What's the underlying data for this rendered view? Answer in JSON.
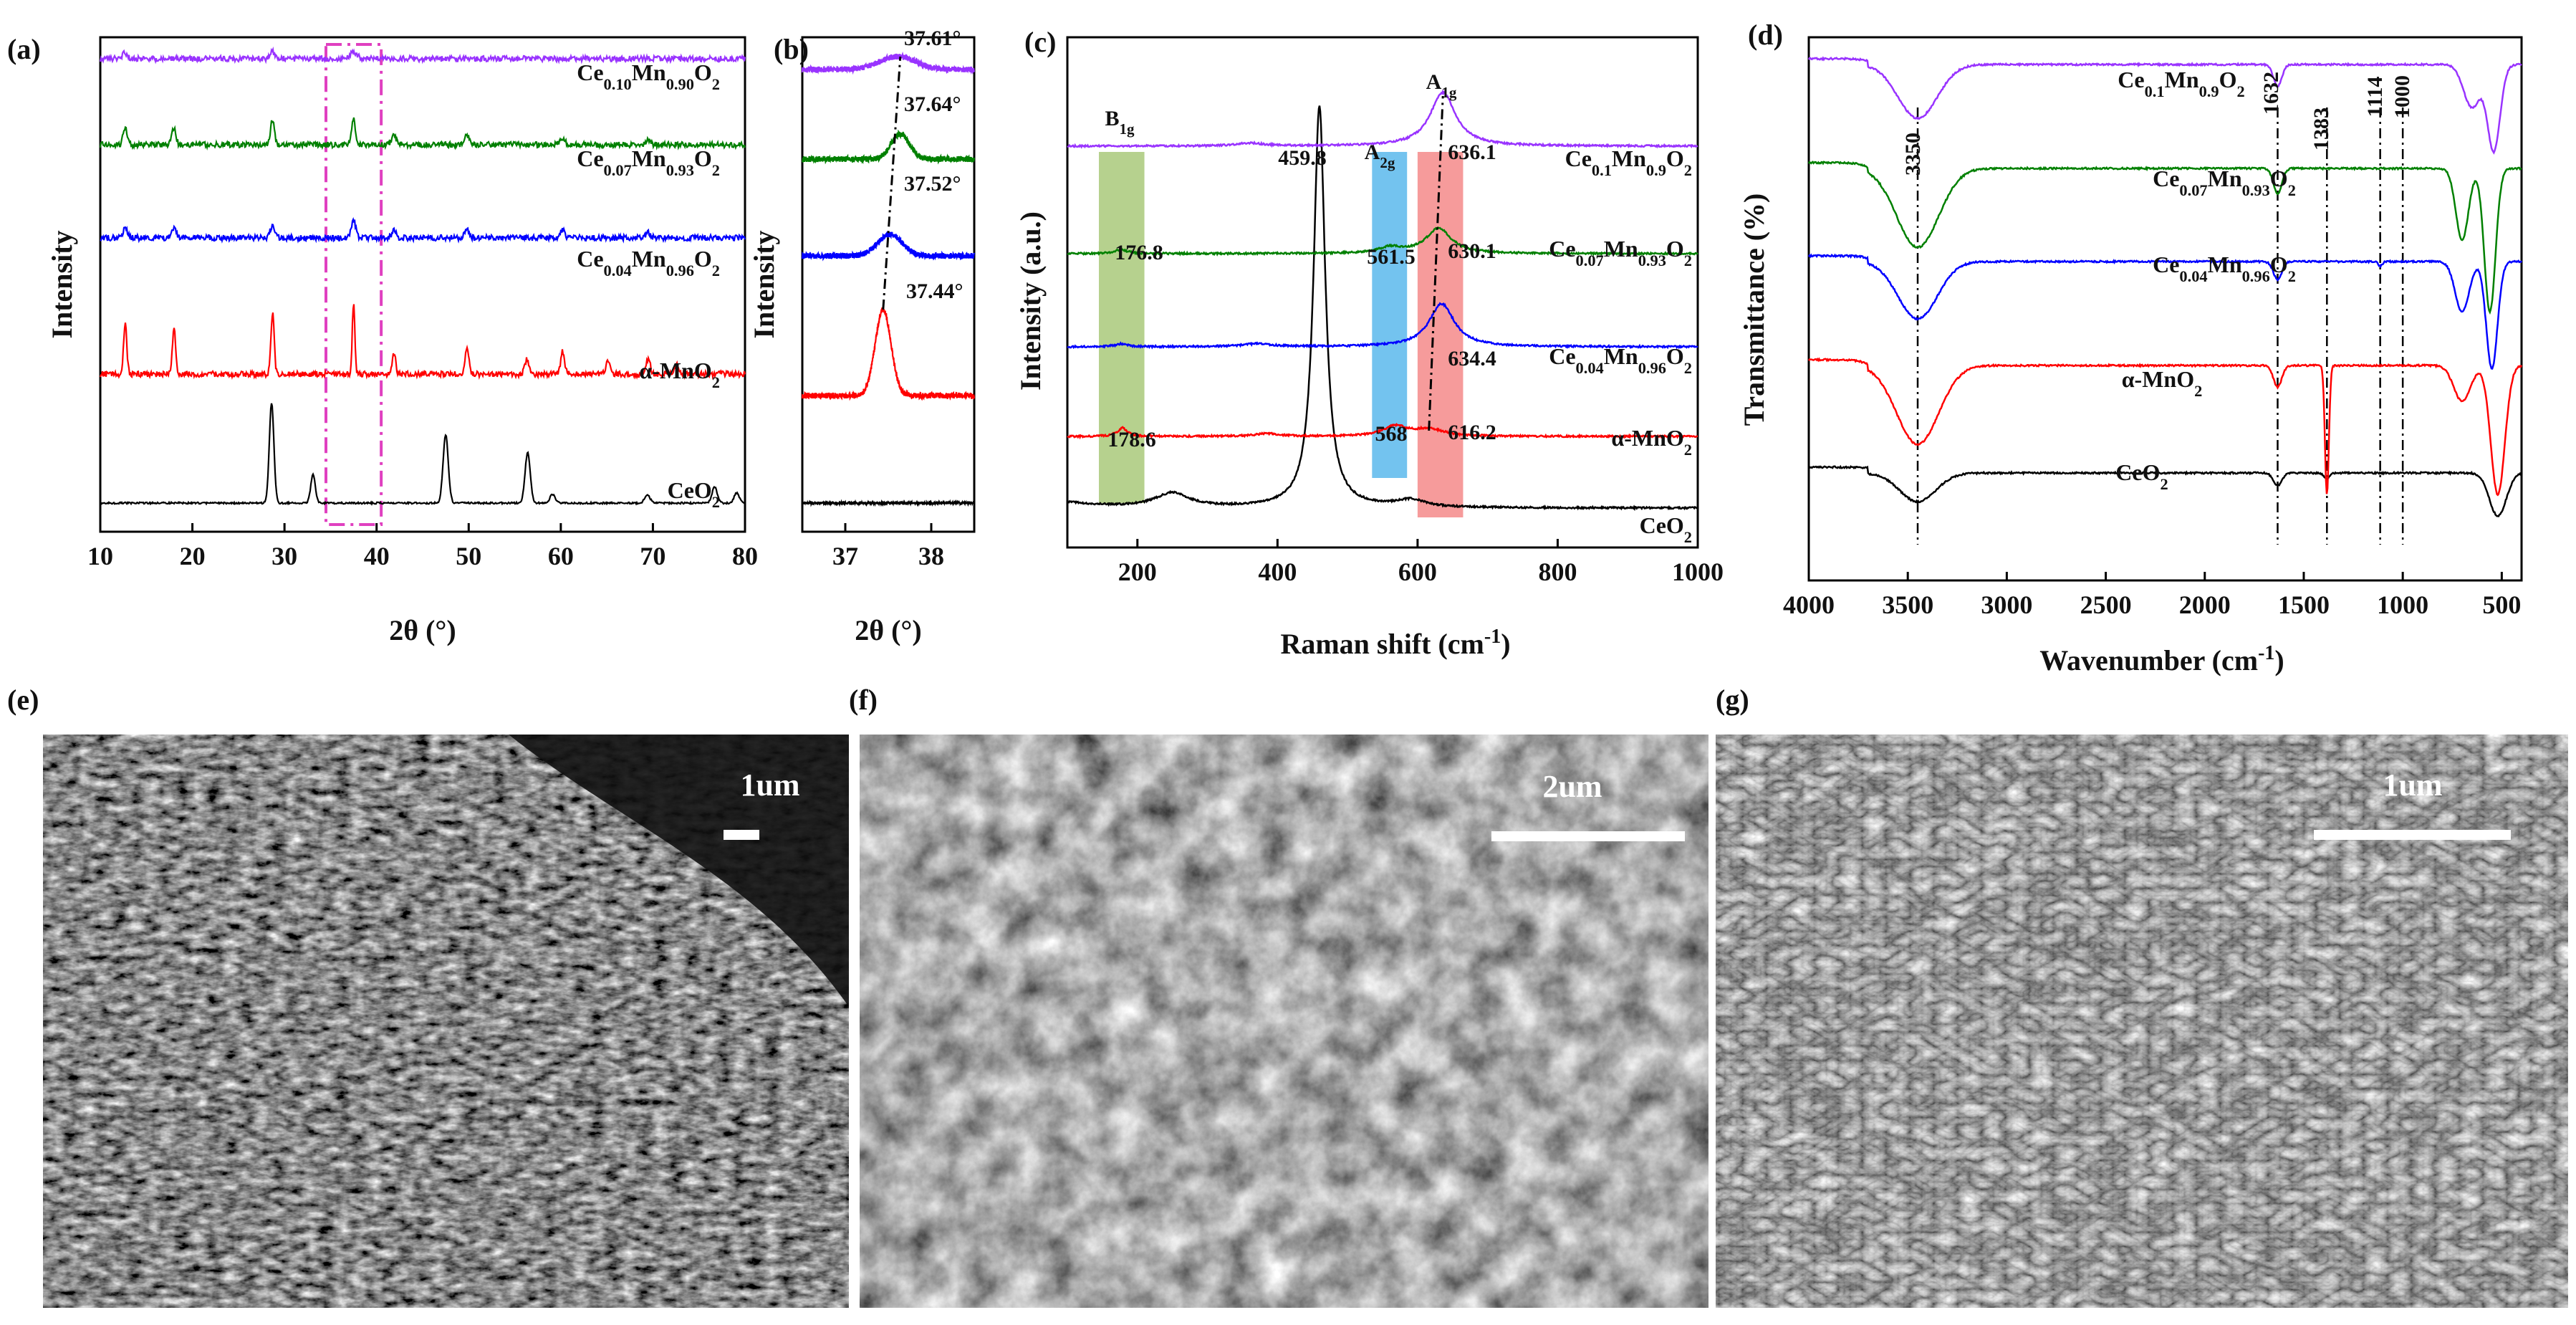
{
  "panels": [
    {
      "id": "a",
      "label": "(a)"
    },
    {
      "id": "b",
      "label": "(b)"
    },
    {
      "id": "c",
      "label": "(c)"
    },
    {
      "id": "d",
      "label": "(d)"
    },
    {
      "id": "e",
      "label": "(e)"
    },
    {
      "id": "f",
      "label": "(f)"
    },
    {
      "id": "g",
      "label": "(g)"
    }
  ],
  "sem_images": [
    {
      "panel": "e",
      "scale_bar": "1um",
      "texture": "urchin microspheres of nanorods"
    },
    {
      "panel": "f",
      "scale_bar": "2um",
      "texture": "flower-like nanosheet aggregates"
    },
    {
      "panel": "g",
      "scale_bar": "1um",
      "texture": "wrinkled nanosheet network"
    }
  ],
  "colors": {
    "CeO2": "#000000",
    "alpha-MnO2": "#ff0000",
    "Ce0.04Mn0.96O2": "#0000ff",
    "Ce0.07Mn0.93O2": "#008000",
    "Ce0.10Mn0.90O2": "#9933ff",
    "dashdot": "#e040c0",
    "B1g_band": "#a9c97a",
    "A2g_band": "#5bb8ec",
    "A1g_band": "#f58a8a"
  },
  "chart_data": [
    {
      "panel": "a",
      "type": "line",
      "xlabel": "2θ (°)",
      "ylabel": "Intensity",
      "xlim": [
        10,
        80
      ],
      "xticks": [
        10,
        20,
        30,
        40,
        50,
        60,
        70,
        80
      ],
      "yticks": "none",
      "highlight_box_x": [
        34.5,
        40.5
      ],
      "series": [
        {
          "name": "CeO2",
          "offset": 0,
          "scale": 1.0,
          "noise": 0.6,
          "peaks": [
            [
              28.6,
              140,
              0.35
            ],
            [
              33.1,
              40,
              0.35
            ],
            [
              47.5,
              95,
              0.4
            ],
            [
              56.4,
              70,
              0.4
            ],
            [
              59.1,
              12,
              0.4
            ],
            [
              69.4,
              12,
              0.4
            ],
            [
              76.7,
              22,
              0.4
            ],
            [
              79.1,
              14,
              0.4
            ]
          ]
        },
        {
          "name": "α-MnO2",
          "offset": 180,
          "scale": 1.0,
          "noise": 2.0,
          "peaks": [
            [
              12.7,
              70,
              0.25
            ],
            [
              18.0,
              65,
              0.25
            ],
            [
              28.7,
              85,
              0.25
            ],
            [
              37.5,
              100,
              0.2
            ],
            [
              41.9,
              30,
              0.25
            ],
            [
              49.8,
              35,
              0.3
            ],
            [
              56.3,
              20,
              0.3
            ],
            [
              60.2,
              32,
              0.3
            ],
            [
              65.1,
              18,
              0.3
            ],
            [
              69.5,
              22,
              0.3
            ],
            [
              72.6,
              12,
              0.3
            ]
          ]
        },
        {
          "name": "Ce0.04Mn0.96O2",
          "offset": 370,
          "scale": 1.0,
          "noise": 2.0,
          "peaks": [
            [
              12.7,
              14,
              0.35
            ],
            [
              18.0,
              14,
              0.35
            ],
            [
              28.7,
              18,
              0.35
            ],
            [
              37.5,
              24,
              0.35
            ],
            [
              41.9,
              10,
              0.35
            ],
            [
              49.8,
              11,
              0.35
            ],
            [
              60.2,
              10,
              0.35
            ],
            [
              69.5,
              7,
              0.35
            ]
          ]
        },
        {
          "name": "Ce0.07Mn0.93O2",
          "offset": 500,
          "scale": 1.0,
          "noise": 2.0,
          "peaks": [
            [
              12.7,
              25,
              0.3
            ],
            [
              18.0,
              25,
              0.3
            ],
            [
              28.7,
              35,
              0.3
            ],
            [
              37.5,
              35,
              0.3
            ],
            [
              41.9,
              12,
              0.35
            ],
            [
              49.8,
              13,
              0.35
            ],
            [
              60.2,
              10,
              0.35
            ],
            [
              69.5,
              8,
              0.35
            ]
          ]
        },
        {
          "name": "Ce0.10Mn0.90O2",
          "offset": 620,
          "scale": 1.0,
          "noise": 2.0,
          "peaks": [
            [
              12.7,
              8,
              0.4
            ],
            [
              28.7,
              10,
              0.4
            ],
            [
              37.5,
              10,
              0.5
            ]
          ]
        }
      ],
      "labels": [
        "Ce0.10Mn0.90O2",
        "Ce0.07Mn0.93O2",
        "Ce0.04Mn0.96O2",
        "α-MnO2",
        "CeO2"
      ]
    },
    {
      "panel": "b",
      "type": "line",
      "xlabel": "2θ (°)",
      "ylabel": "Intensity",
      "xlim": [
        36.5,
        38.5
      ],
      "xticks": [
        37,
        38
      ],
      "yticks": "none",
      "series": [
        {
          "name": "CeO2",
          "offset": 0,
          "noise": 0.8,
          "peaks": []
        },
        {
          "name": "α-MnO2",
          "offset": 150,
          "noise": 2.0,
          "peaks": [
            [
              37.44,
              120,
              0.13
            ]
          ]
        },
        {
          "name": "Ce0.04Mn0.96O2",
          "offset": 345,
          "noise": 2.0,
          "peaks": [
            [
              37.52,
              30,
              0.2
            ]
          ]
        },
        {
          "name": "Ce0.07Mn0.93O2",
          "offset": 480,
          "noise": 2.0,
          "peaks": [
            [
              37.64,
              35,
              0.15
            ]
          ]
        },
        {
          "name": "Ce0.10Mn0.90O2",
          "offset": 605,
          "noise": 2.0,
          "peaks": [
            [
              37.61,
              18,
              0.3
            ]
          ]
        }
      ],
      "peak_positions": [
        "37.44°",
        "37.52°",
        "37.64°",
        "37.61°"
      ],
      "peak_values": [
        37.44,
        37.52,
        37.64,
        37.61
      ]
    },
    {
      "panel": "c",
      "type": "line",
      "xlabel": "Raman shift (cm-1)",
      "ylabel": "Intensity (a.u.)",
      "xlim": [
        100,
        1000
      ],
      "xticks": [
        200,
        400,
        600,
        800,
        1000
      ],
      "yticks": "none",
      "bands": [
        {
          "label": "B1g",
          "x": [
            145,
            210
          ]
        },
        {
          "label": "A2g",
          "x": [
            535,
            585
          ]
        },
        {
          "label": "A1g",
          "x": [
            600,
            665
          ]
        }
      ],
      "series": [
        {
          "name": "CeO2",
          "offset": 0,
          "noise": 1.0,
          "baseline_slope": 0.0,
          "peaks": [
            [
              250,
              20,
              30
            ],
            [
              459.8,
              560,
              10
            ],
            [
              590,
              10,
              25
            ]
          ]
        },
        {
          "name": "α-MnO2",
          "offset": 100,
          "noise": 1.0,
          "peaks": [
            [
              178.6,
              12,
              8
            ],
            [
              385,
              4,
              20
            ],
            [
              568,
              14,
              20
            ],
            [
              616.2,
              10,
              25
            ]
          ]
        },
        {
          "name": "Ce0.04Mn0.96O2",
          "offset": 225,
          "noise": 1.0,
          "peaks": [
            [
              176.8,
              4,
              10
            ],
            [
              370,
              4,
              25
            ],
            [
              634.4,
              60,
              22
            ]
          ]
        },
        {
          "name": "Ce0.07Mn0.93O2",
          "offset": 355,
          "noise": 1.0,
          "peaks": [
            [
              176.8,
              6,
              10
            ],
            [
              561.5,
              8,
              20
            ],
            [
              630.1,
              35,
              22
            ]
          ]
        },
        {
          "name": "Ce0.10Mn0.90O2",
          "offset": 505,
          "noise": 1.0,
          "peaks": [
            [
              360,
              4,
              25
            ],
            [
              636.1,
              75,
              22
            ]
          ]
        }
      ],
      "annotations": [
        "459.8",
        "178.6",
        "568",
        "616.2",
        "634.4",
        "176.8",
        "561.5",
        "630.1",
        "636.1"
      ],
      "annotation_values": [
        459.8,
        178.6,
        568,
        616.2,
        634.4,
        176.8,
        561.5,
        630.1,
        636.1
      ],
      "labels": [
        "Ce0.1Mn0.9O2",
        "Ce0.07Mn0.93O2",
        "Ce0.04Mn0.96O2",
        "α-MnO2",
        "CeO2"
      ]
    },
    {
      "panel": "d",
      "type": "line",
      "xlabel": "Wavenumber (cm-1)",
      "ylabel": "Transmittance (%)",
      "xlim": [
        4000,
        400
      ],
      "xticks": [
        4000,
        3500,
        3000,
        2500,
        2000,
        1500,
        1000,
        500
      ],
      "yticks": "none",
      "ref_lines": [
        3350,
        1632,
        1383,
        1114,
        1000
      ],
      "series": [
        {
          "name": "CeO2",
          "offset": 0,
          "noise": 0.8,
          "features": [
            [
              3450,
              -40,
              130
            ],
            [
              1632,
              -18,
              30
            ],
            [
              1383,
              -8,
              20
            ],
            [
              520,
              -60,
              60
            ]
          ]
        },
        {
          "name": "α-MnO2",
          "offset": 150,
          "noise": 0.8,
          "features": [
            [
              3450,
              -110,
              150
            ],
            [
              1632,
              -30,
              30
            ],
            [
              1383,
              -180,
              14
            ],
            [
              700,
              -50,
              60
            ],
            [
              520,
              -180,
              50
            ]
          ]
        },
        {
          "name": "Ce0.04Mn0.96O2",
          "offset": 295,
          "noise": 0.8,
          "features": [
            [
              3450,
              -80,
              140
            ],
            [
              1632,
              -25,
              30
            ],
            [
              1114,
              -6,
              15
            ],
            [
              700,
              -70,
              50
            ],
            [
              550,
              -150,
              40
            ]
          ]
        },
        {
          "name": "Ce0.07Mn0.93O2",
          "offset": 425,
          "noise": 0.8,
          "features": [
            [
              3450,
              -110,
              150
            ],
            [
              1632,
              -35,
              30
            ],
            [
              700,
              -100,
              45
            ],
            [
              560,
              -200,
              40
            ]
          ]
        },
        {
          "name": "Ce0.1Mn0.9O2",
          "offset": 570,
          "noise": 0.8,
          "features": [
            [
              3450,
              -75,
              140
            ],
            [
              1632,
              -30,
              30
            ],
            [
              650,
              -60,
              60
            ],
            [
              540,
              -120,
              45
            ]
          ]
        }
      ],
      "annotations": [
        "3350",
        "1632",
        "1383",
        "1114",
        "1000"
      ],
      "labels": [
        "Ce0.1Mn0.9O2",
        "Ce0.07Mn0.93O2",
        "Ce0.04Mn0.96O2",
        "α-MnO2",
        "CeO2"
      ]
    }
  ]
}
